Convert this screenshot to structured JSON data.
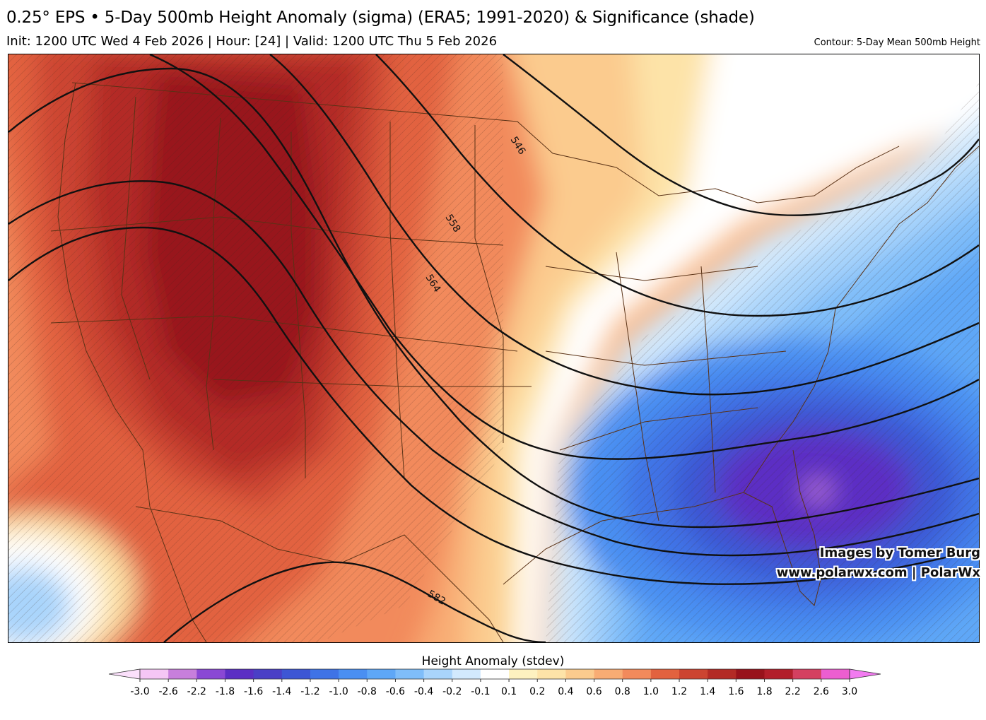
{
  "header": {
    "title": "0.25° EPS • 5-Day 500mb Height Anomaly (sigma) (ERA5; 1991-2020) & Significance (shade)",
    "subtitle": "Init: 1200 UTC Wed 4 Feb 2026 | Hour: [24] | Valid: 1200 UTC Thu 5 Feb 2026",
    "contour_note": "Contour: 5-Day Mean 500mb Height"
  },
  "contour_labels": [
    "546",
    "558",
    "564",
    "582"
  ],
  "credits": {
    "line1": "Images by Tomer Burg",
    "line2": "www.polarwx.com | PolarWx"
  },
  "colorbar": {
    "title": "Height Anomaly (stdev)",
    "ticks": [
      "-3.0",
      "-2.6",
      "-2.2",
      "-1.8",
      "-1.6",
      "-1.4",
      "-1.2",
      "-1.0",
      "-0.8",
      "-0.6",
      "-0.4",
      "-0.2",
      "-0.1",
      "0.1",
      "0.2",
      "0.4",
      "0.6",
      "0.8",
      "1.0",
      "1.2",
      "1.4",
      "1.6",
      "1.8",
      "2.2",
      "2.6",
      "3.0"
    ],
    "colors": [
      "#f5c6f5",
      "#c77fdc",
      "#8a48d4",
      "#5b2ec4",
      "#4a3fc6",
      "#3d56d4",
      "#3f73e6",
      "#4a8ff2",
      "#5ea7f7",
      "#7fbdf9",
      "#a9d4fb",
      "#d2e9fd",
      "#ffffff",
      "#fdf1c0",
      "#fde3a8",
      "#fbcb8e",
      "#f8ac74",
      "#f28a5c",
      "#e2623f",
      "#cc4431",
      "#b32a25",
      "#98121b",
      "#b21e2a",
      "#d44060",
      "#ec5ed0"
    ],
    "under_color": "#fbe0fb",
    "over_color": "#f27bf0"
  }
}
